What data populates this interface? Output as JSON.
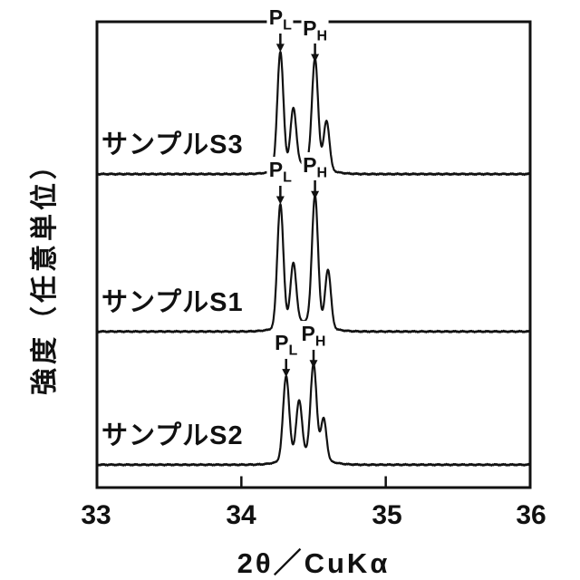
{
  "chart_data": {
    "type": "line",
    "title": "",
    "xlabel": "2θ／CuKα",
    "ylabel": "強度（任意単位）",
    "xlim": [
      33,
      36
    ],
    "x_tick_labels": [
      "33",
      "34",
      "35",
      "36"
    ],
    "x_tick_values": [
      33,
      34,
      35,
      36
    ],
    "x_ticks_marked": [
      34,
      35
    ],
    "y_ticks": [],
    "grid": false,
    "legend": false,
    "line_color": "#111111",
    "background": "#ffffff",
    "y_units": "arbitrary units, three traces vertically offset, intensity normalized to tallest peak = 1.0",
    "series": [
      {
        "name": "サンプルS3",
        "panel": "top",
        "baseline_frac": 0.327,
        "peaks": [
          {
            "center": 34.27,
            "height": 0.92,
            "sigma": 0.021,
            "label": "PL"
          },
          {
            "center": 34.36,
            "height": 0.45,
            "sigma": 0.02
          },
          {
            "center": 34.51,
            "height": 0.84,
            "sigma": 0.021,
            "label": "PH"
          },
          {
            "center": 34.59,
            "height": 0.38,
            "sigma": 0.02
          },
          {
            "center": 34.43,
            "height": 0.08,
            "sigma": 0.13,
            "role": "broad-base"
          }
        ]
      },
      {
        "name": "サンプルS1",
        "panel": "middle",
        "baseline_frac": 0.665,
        "peaks": [
          {
            "center": 34.27,
            "height": 0.96,
            "sigma": 0.021,
            "label": "PL"
          },
          {
            "center": 34.36,
            "height": 0.47,
            "sigma": 0.02
          },
          {
            "center": 34.51,
            "height": 1.0,
            "sigma": 0.021,
            "label": "PH"
          },
          {
            "center": 34.6,
            "height": 0.45,
            "sigma": 0.02
          },
          {
            "center": 34.43,
            "height": 0.08,
            "sigma": 0.13,
            "role": "broad-base"
          }
        ]
      },
      {
        "name": "サンプルS2",
        "panel": "bottom",
        "baseline_frac": 0.951,
        "peaks": [
          {
            "center": 34.31,
            "height": 0.65,
            "sigma": 0.021,
            "label": "PL"
          },
          {
            "center": 34.4,
            "height": 0.43,
            "sigma": 0.02
          },
          {
            "center": 34.5,
            "height": 0.72,
            "sigma": 0.021,
            "label": "PH"
          },
          {
            "center": 34.57,
            "height": 0.32,
            "sigma": 0.019
          },
          {
            "center": 34.44,
            "height": 0.08,
            "sigma": 0.12,
            "role": "broad-base"
          }
        ]
      }
    ],
    "peak_labels": {
      "PL": {
        "main": "P",
        "sub": "L"
      },
      "PH": {
        "main": "P",
        "sub": "H"
      }
    }
  }
}
